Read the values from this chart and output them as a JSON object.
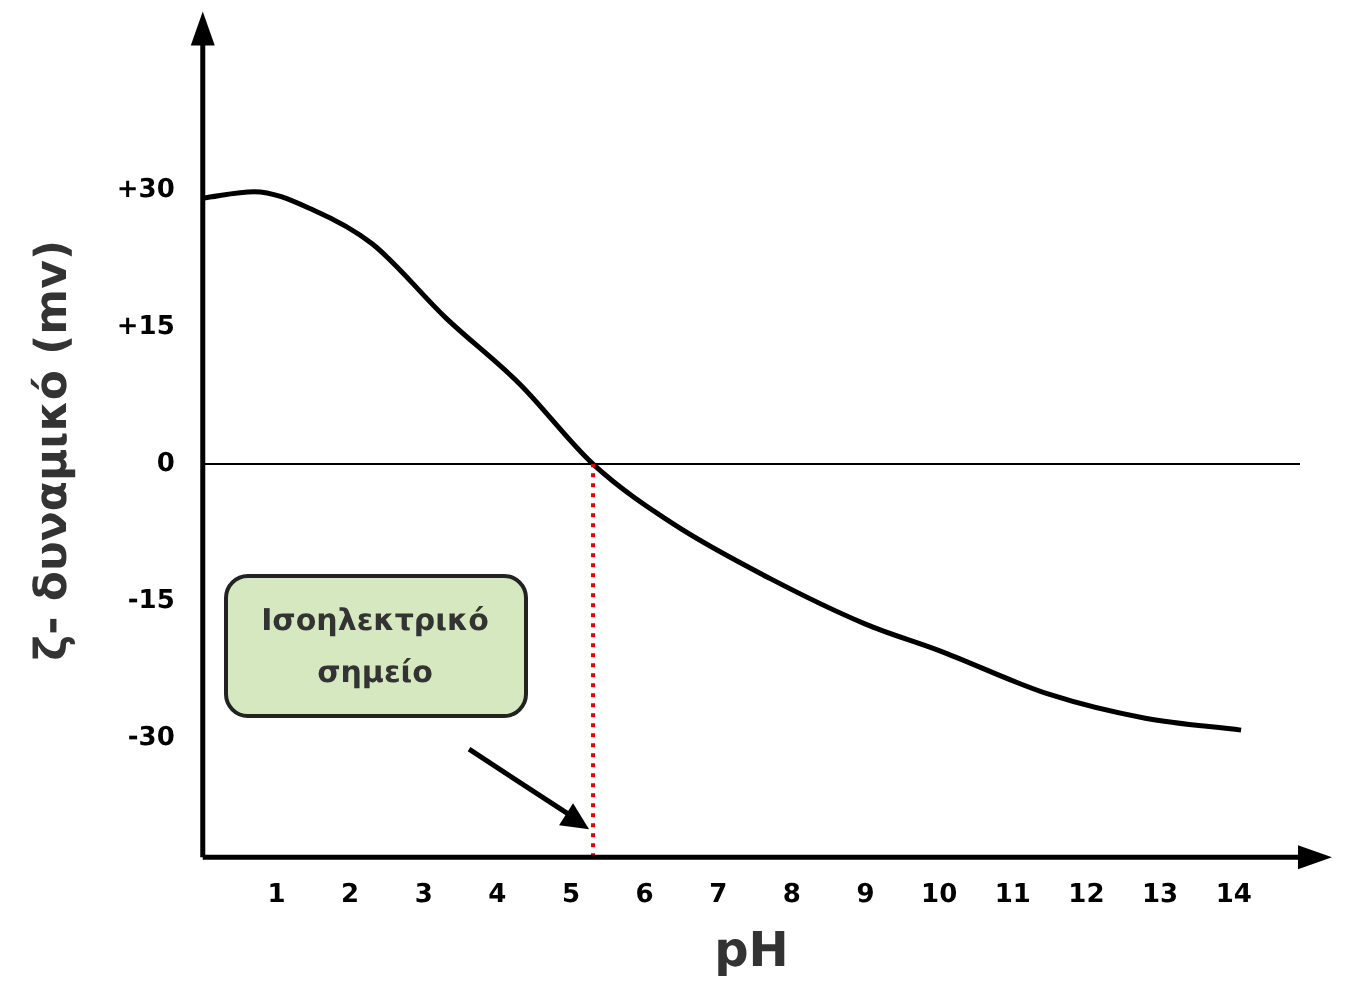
{
  "chart_data": {
    "type": "line",
    "xlabel": "pH",
    "ylabel": "ζ- δυναμικό (mv)",
    "x": [
      0,
      0.7,
      1.5,
      2.3,
      3.3,
      4.3,
      5.3,
      6.4,
      7.7,
      9,
      10,
      11.5,
      12.8,
      14.1
    ],
    "series": [
      {
        "color": "#000000",
        "values": [
          29.1,
          29.8,
          27.8,
          24.1,
          16,
          8.8,
          0,
          -6.6,
          -12.5,
          -17.5,
          -20.4,
          -25.2,
          -27.8,
          -29.1
        ]
      }
    ],
    "xlim": [
      0,
      14.9
    ],
    "ylim": [
      -43,
      46
    ],
    "xticks": [
      1,
      2,
      3,
      4,
      5,
      6,
      7,
      8,
      9,
      10,
      11,
      12,
      13,
      14
    ],
    "yticks": [
      {
        "value": 30,
        "label": "+30"
      },
      {
        "value": 15,
        "label": "+15"
      },
      0,
      -15,
      -30
    ],
    "ref_lines": [
      {
        "axis": "y",
        "value": 0,
        "color": "#000000",
        "line_style": "solid"
      },
      {
        "axis": "x",
        "value": 5.3,
        "color": "#e00000",
        "line_style": "dotted"
      }
    ],
    "annotations": [
      "Ισοηλεκτρικό σημείο"
    ],
    "grid": false,
    "legend": false,
    "marker": "none",
    "line_style": "solid"
  }
}
